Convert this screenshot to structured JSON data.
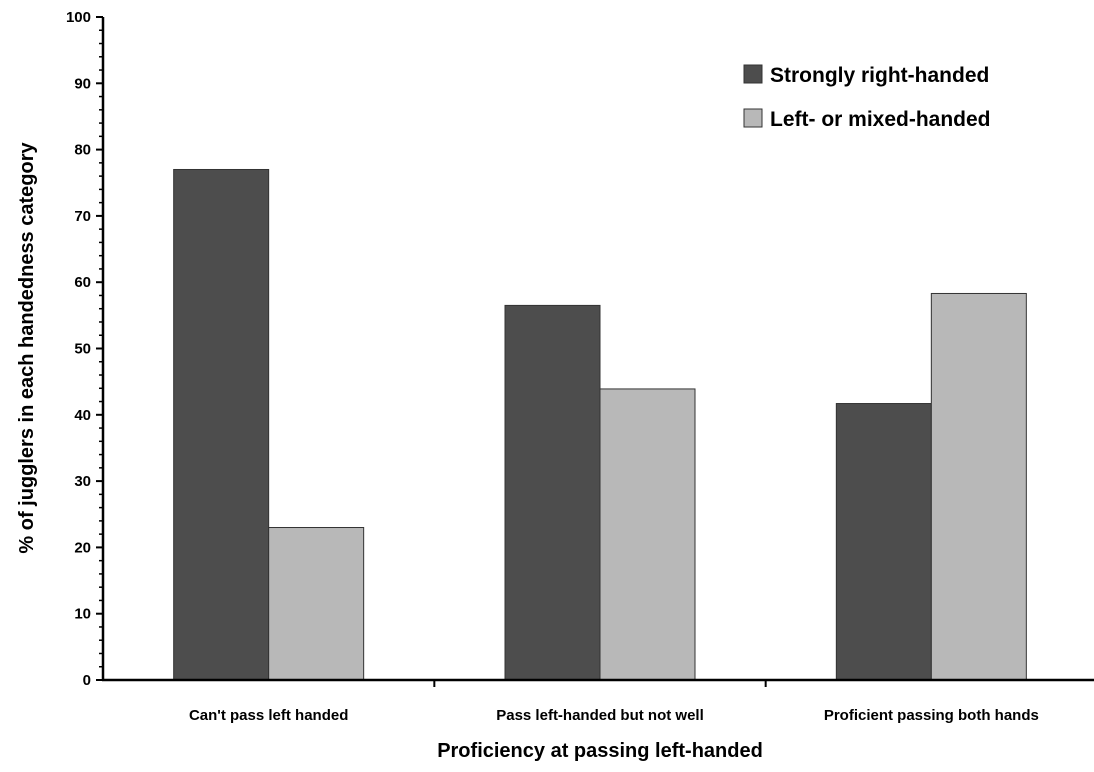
{
  "chart_data": {
    "type": "bar",
    "title": "",
    "xlabel": "Proficiency at passing left-handed",
    "ylabel": "% of jugglers in each handedness category",
    "categories": [
      "Can't pass left handed",
      "Pass left-handed but not well",
      "Proficient passing both hands"
    ],
    "series": [
      {
        "name": "Strongly right-handed",
        "values": [
          77,
          56.5,
          41.7
        ],
        "color": "#4d4d4d"
      },
      {
        "name": "Left- or mixed-handed",
        "values": [
          23,
          43.9,
          58.3
        ],
        "color": "#b8b8b8"
      }
    ],
    "ylim": [
      0,
      100
    ],
    "yticks": [
      0,
      10,
      20,
      30,
      40,
      50,
      60,
      70,
      80,
      90,
      100
    ],
    "ytick_labels": [
      "0",
      "10",
      "20",
      "30",
      "40",
      "50",
      "60",
      "70",
      "80",
      "90",
      "100"
    ],
    "grid": false,
    "legend_position": "top-right"
  }
}
